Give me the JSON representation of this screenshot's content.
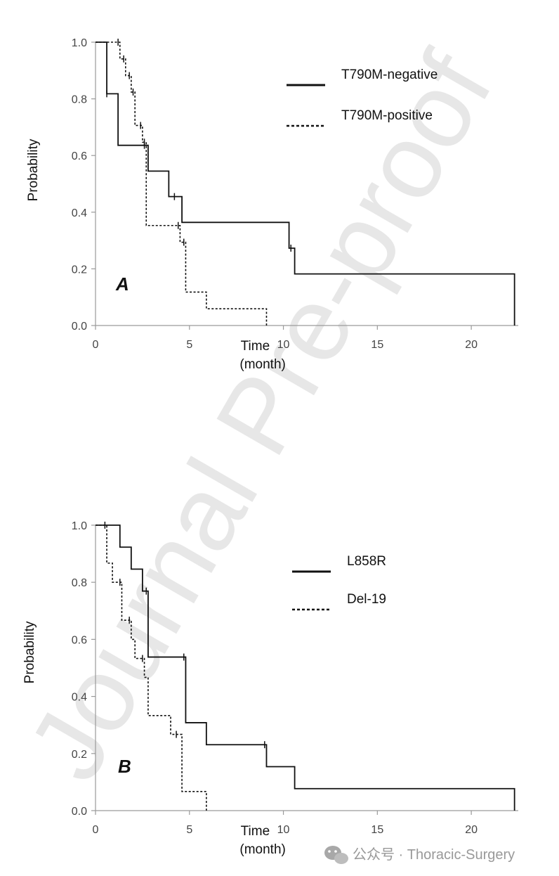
{
  "watermark": "Journal Pre-proof",
  "footer": {
    "text": "公众号 · Thoracic-Surgery"
  },
  "chart_data": [
    {
      "type": "line",
      "panel": "A",
      "ylabel": "Probability",
      "xlabel_line1": "Time",
      "xlabel_line2": "(month)",
      "xlim": [
        0,
        22.5
      ],
      "ylim": [
        0,
        1.0
      ],
      "xticks": [
        0,
        5,
        10,
        15,
        20
      ],
      "yticks": [
        "0.0",
        "0.2",
        "0.4",
        "0.6",
        "0.8",
        "1.0"
      ],
      "grid": false,
      "legend_position": "top-right",
      "series": [
        {
          "name": "T790M-negative",
          "style": "solid",
          "color": "#111111",
          "x": [
            0,
            0.6,
            1.2,
            2.8,
            3.9,
            4.6,
            10.3,
            10.6,
            22.3
          ],
          "y": [
            1.0,
            0.818,
            0.636,
            0.545,
            0.455,
            0.364,
            0.273,
            0.182,
            0.091
          ],
          "end": 22.3,
          "end_y": 0.0,
          "censor_x": [
            0.6,
            2.6,
            4.2,
            10.4
          ]
        },
        {
          "name": "T790M-positive",
          "style": "dotted",
          "color": "#111111",
          "x": [
            0,
            1.3,
            1.6,
            1.9,
            2.1,
            2.5,
            2.7,
            4.5,
            4.8,
            5.9,
            9.1
          ],
          "y": [
            1.0,
            0.941,
            0.882,
            0.824,
            0.706,
            0.647,
            0.353,
            0.294,
            0.118,
            0.059,
            0.0
          ],
          "end": 9.1,
          "end_y": 0.0,
          "censor_x": [
            1.2,
            1.5,
            1.8,
            2.0,
            2.4,
            2.6,
            4.4,
            4.7
          ]
        }
      ]
    },
    {
      "type": "line",
      "panel": "B",
      "ylabel": "Probability",
      "xlabel_line1": "Time",
      "xlabel_line2": "(month)",
      "xlim": [
        0,
        22.5
      ],
      "ylim": [
        0,
        1.0
      ],
      "xticks": [
        0,
        5,
        10,
        15,
        20
      ],
      "yticks": [
        "0.0",
        "0.2",
        "0.4",
        "0.6",
        "0.8",
        "1.0"
      ],
      "grid": false,
      "legend_position": "top-right",
      "series": [
        {
          "name": "L858R",
          "style": "solid",
          "color": "#111111",
          "x": [
            0,
            1.3,
            1.9,
            2.5,
            2.8,
            4.8,
            5.9,
            9.1,
            10.6,
            22.3
          ],
          "y": [
            1.0,
            0.923,
            0.846,
            0.769,
            0.538,
            0.308,
            0.231,
            0.154,
            0.077,
            0.077
          ],
          "end": 22.3,
          "end_y": 0.0,
          "censor_x": [
            2.7,
            4.7,
            9.0
          ]
        },
        {
          "name": "Del-19",
          "style": "dotted",
          "color": "#111111",
          "x": [
            0,
            0.6,
            0.9,
            1.4,
            1.9,
            2.1,
            2.6,
            2.8,
            4.0,
            4.6,
            5.9
          ],
          "y": [
            1.0,
            0.867,
            0.8,
            0.667,
            0.6,
            0.533,
            0.467,
            0.333,
            0.267,
            0.067,
            0.0
          ],
          "end": 5.9,
          "end_y": 0.0,
          "censor_x": [
            0.5,
            1.3,
            1.8,
            2.5,
            4.3
          ]
        }
      ]
    }
  ]
}
